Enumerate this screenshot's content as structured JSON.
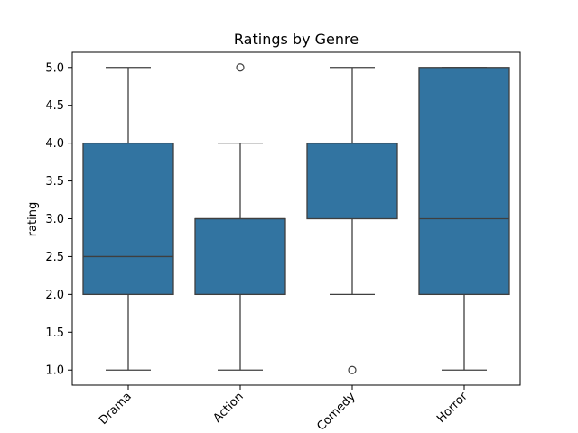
{
  "chart_data": {
    "type": "box",
    "title": "Ratings by Genre",
    "xlabel": "",
    "ylabel": "rating",
    "ylim": [
      0.8,
      5.2
    ],
    "yticks": [
      1.0,
      1.5,
      2.0,
      2.5,
      3.0,
      3.5,
      4.0,
      4.5,
      5.0
    ],
    "ytick_labels": [
      "1.0",
      "1.5",
      "2.0",
      "2.5",
      "3.0",
      "3.5",
      "4.0",
      "4.5",
      "5.0"
    ],
    "categories": [
      "Drama",
      "Action",
      "Comedy",
      "Horror"
    ],
    "xtick_rotation_deg": 45,
    "grid": false,
    "color": "#3274a1",
    "line_color": "#3f3f3f",
    "boxes": [
      {
        "category": "Drama",
        "whisker_low": 1.0,
        "q1": 2.0,
        "median": 2.5,
        "q3": 4.0,
        "whisker_high": 5.0,
        "outliers": []
      },
      {
        "category": "Action",
        "whisker_low": 1.0,
        "q1": 2.0,
        "median": 3.0,
        "q3": 3.0,
        "whisker_high": 4.0,
        "outliers": [
          5.0
        ]
      },
      {
        "category": "Comedy",
        "whisker_low": 2.0,
        "q1": 3.0,
        "median": 4.0,
        "q3": 4.0,
        "whisker_high": 5.0,
        "outliers": [
          1.0
        ]
      },
      {
        "category": "Horror",
        "whisker_low": 1.0,
        "q1": 2.0,
        "median": 3.0,
        "q3": 5.0,
        "whisker_high": 5.0,
        "outliers": []
      }
    ]
  }
}
